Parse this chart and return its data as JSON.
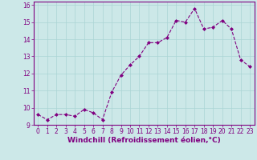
{
  "x": [
    0,
    1,
    2,
    3,
    4,
    5,
    6,
    7,
    8,
    9,
    10,
    11,
    12,
    13,
    14,
    15,
    16,
    17,
    18,
    19,
    20,
    21,
    22,
    23
  ],
  "y": [
    9.6,
    9.3,
    9.6,
    9.6,
    9.5,
    9.9,
    9.7,
    9.3,
    10.9,
    11.9,
    12.5,
    13.0,
    13.8,
    13.8,
    14.1,
    15.1,
    15.0,
    15.8,
    14.6,
    14.7,
    15.1,
    14.6,
    12.8,
    12.4
  ],
  "line_color": "#800080",
  "marker_color": "#800080",
  "bg_color": "#cce8e8",
  "grid_color": "#aad4d4",
  "xlabel": "Windchill (Refroidissement éolien,°C)",
  "xlim": [
    -0.5,
    23.5
  ],
  "ylim": [
    9.0,
    16.2
  ],
  "yticks": [
    9,
    10,
    11,
    12,
    13,
    14,
    15,
    16
  ],
  "xticks": [
    0,
    1,
    2,
    3,
    4,
    5,
    6,
    7,
    8,
    9,
    10,
    11,
    12,
    13,
    14,
    15,
    16,
    17,
    18,
    19,
    20,
    21,
    22,
    23
  ],
  "xlabel_fontsize": 6.5,
  "tick_fontsize": 5.5
}
